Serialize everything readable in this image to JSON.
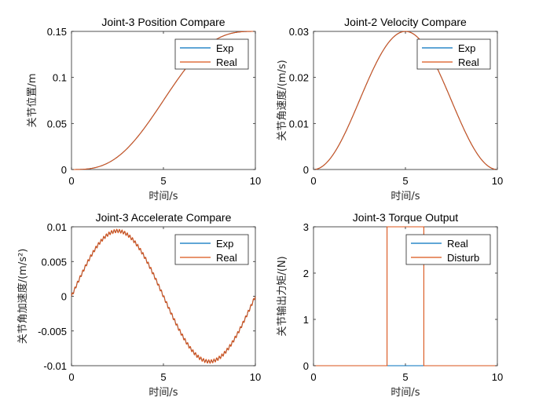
{
  "colors": {
    "exp": "#0072BD",
    "real": "#D95319",
    "disturb": "#D95319"
  },
  "chart_data": [
    {
      "type": "line",
      "title": "Joint-3 Position Compare",
      "xlabel": "时间/s",
      "ylabel": "关节位置/m",
      "xlim": [
        0,
        10
      ],
      "ylim": [
        0,
        0.15
      ],
      "xticks": [
        "0",
        "5",
        "10"
      ],
      "yticks": [
        "0",
        "0.05",
        "0.1",
        "0.15"
      ],
      "grid": false,
      "legend": "top-right",
      "x": [
        0,
        1,
        2,
        3,
        4,
        5,
        6,
        7,
        8,
        9,
        10
      ],
      "series": [
        {
          "name": "Exp",
          "values": [
            0,
            0.0013,
            0.0089,
            0.0245,
            0.0472,
            0.075,
            0.1028,
            0.1255,
            0.1411,
            0.1487,
            0.15
          ]
        },
        {
          "name": "Real",
          "values": [
            0,
            0.0013,
            0.0089,
            0.0245,
            0.0472,
            0.075,
            0.1028,
            0.1255,
            0.1411,
            0.1487,
            0.15
          ]
        }
      ]
    },
    {
      "type": "line",
      "title": "Joint-2 Velocity Compare",
      "xlabel": "时间/s",
      "ylabel": "关节角速度/(m/s)",
      "xlim": [
        0,
        10
      ],
      "ylim": [
        0,
        0.03
      ],
      "xticks": [
        "0",
        "5",
        "10"
      ],
      "yticks": [
        "0",
        "0.01",
        "0.02",
        "0.03"
      ],
      "grid": false,
      "legend": "top-right",
      "x": [
        0,
        1,
        2,
        3,
        4,
        5,
        6,
        7,
        8,
        9,
        10
      ],
      "series": [
        {
          "name": "Exp",
          "values": [
            0,
            0.0028,
            0.0096,
            0.0176,
            0.0254,
            0.0281,
            0.0254,
            0.0176,
            0.0096,
            0.0028,
            0
          ]
        },
        {
          "name": "Real",
          "values": [
            0,
            0.0028,
            0.0096,
            0.0176,
            0.0254,
            0.0281,
            0.0254,
            0.0176,
            0.0096,
            0.0028,
            0
          ]
        }
      ]
    },
    {
      "type": "line",
      "title": "Joint-3 Accelerate Compare",
      "xlabel": "时间/s",
      "ylabel": "关节角加速度/(m/s²)",
      "xlim": [
        0,
        10
      ],
      "ylim": [
        -0.01,
        0.01
      ],
      "xticks": [
        "0",
        "5",
        "10"
      ],
      "yticks": [
        "-0.01",
        "-0.005",
        "0",
        "0.005",
        "0.01"
      ],
      "grid": false,
      "legend": "top-right",
      "x": [
        0,
        1,
        2,
        3,
        4,
        5,
        6,
        7,
        8,
        9,
        10
      ],
      "series": [
        {
          "name": "Exp",
          "values": [
            0,
            0.0054,
            0.0086,
            0.0084,
            0.0052,
            0.0001,
            -0.0053,
            -0.0084,
            -0.0087,
            -0.0055,
            0
          ]
        },
        {
          "name": "Real",
          "values": [
            0,
            0.0054,
            0.0086,
            0.0084,
            0.0052,
            0.0001,
            -0.0053,
            -0.0084,
            -0.0087,
            -0.0055,
            0
          ]
        }
      ]
    },
    {
      "type": "line",
      "title": "Joint-3 Torque Output",
      "xlabel": "时间/s",
      "ylabel": "关节输出力矩/(N)",
      "xlim": [
        0,
        10
      ],
      "ylim": [
        0,
        3
      ],
      "xticks": [
        "0",
        "5",
        "10"
      ],
      "yticks": [
        "0",
        "1",
        "2",
        "3"
      ],
      "grid": false,
      "legend": "top-right",
      "x": [
        0,
        4,
        4,
        6,
        6,
        10
      ],
      "series": [
        {
          "name": "Real",
          "values": [
            0,
            0,
            0,
            0,
            0,
            0
          ]
        },
        {
          "name": "Disturb",
          "values": [
            0,
            0,
            3,
            3,
            0,
            0
          ]
        }
      ]
    }
  ]
}
